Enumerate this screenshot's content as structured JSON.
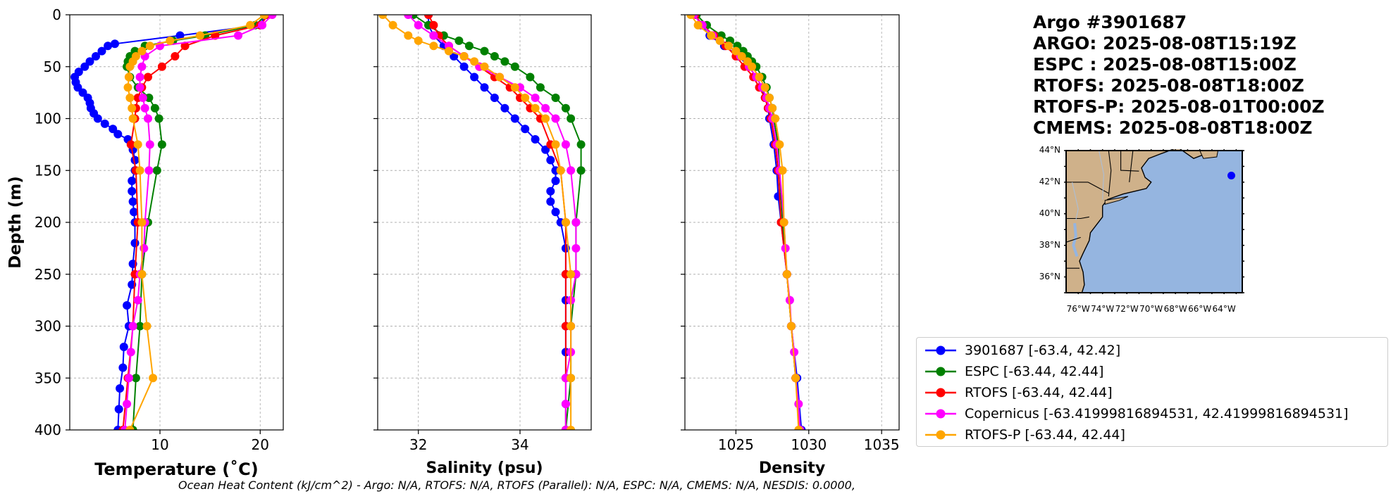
{
  "colors": {
    "argo": "#0000ff",
    "espc": "#008000",
    "rtofs": "#ff0000",
    "copernicus": "#ff00ff",
    "rtofs_p": "#ffa500",
    "land": "#cfb18a",
    "ocean": "#95b5e0",
    "grid": "#b0b0b0"
  },
  "title": {
    "lines": [
      "Argo #3901687",
      "ARGO: 2025-08-08T15:19Z",
      "ESPC : 2025-08-08T15:00Z",
      "RTOFS: 2025-08-08T18:00Z",
      "RTOFS-P: 2025-08-01T00:00Z",
      "CMEMS: 2025-08-08T18:00Z"
    ]
  },
  "legend": {
    "items": [
      {
        "label": "3901687 [-63.4, 42.42]",
        "color": "#0000ff"
      },
      {
        "label": "ESPC [-63.44, 42.44]",
        "color": "#008000"
      },
      {
        "label": "RTOFS [-63.44, 42.44]",
        "color": "#ff0000"
      },
      {
        "label": "Copernicus [-63.41999816894531, 42.41999816894531]",
        "color": "#ff00ff"
      },
      {
        "label": "RTOFS-P [-63.44, 42.44]",
        "color": "#ffa500"
      }
    ]
  },
  "footer": {
    "text": "Ocean Heat Content (kJ/cm^2) - Argo: N/A,  RTOFS: N/A,  RTOFS (Parallel): N/A,  ESPC: N/A,  CMEMS: N/A,  NESDIS: 0.0000,"
  },
  "map": {
    "lat_labels": [
      "44°N",
      "42°N",
      "40°N",
      "38°N",
      "36°N"
    ],
    "lon_labels": [
      "76°W",
      "74°W",
      "72°W",
      "70°W",
      "68°W",
      "66°W",
      "64°W"
    ],
    "marker": {
      "lon": -63.4,
      "lat": 42.42
    },
    "extent": {
      "lon_min": -77,
      "lon_max": -62.5,
      "lat_min": 35,
      "lat_max": 44
    }
  },
  "chart_data": [
    {
      "type": "line",
      "xlabel": "Temperature (˚C)",
      "ylabel": "Depth (m)",
      "xlim": [
        1,
        22.3
      ],
      "ylim": [
        400,
        0
      ],
      "xticks": [
        10,
        20
      ],
      "yticks": [
        0,
        50,
        100,
        150,
        200,
        250,
        300,
        350,
        400
      ],
      "grid": true,
      "series": [
        {
          "name": "3901687",
          "key": "argo",
          "depth": [
            0,
            10,
            20,
            28,
            30,
            35,
            40,
            45,
            50,
            55,
            60,
            65,
            70,
            75,
            80,
            85,
            90,
            95,
            100,
            105,
            110,
            115,
            120,
            125,
            130,
            140,
            150,
            160,
            170,
            180,
            190,
            200,
            220,
            240,
            260,
            280,
            300,
            320,
            340,
            360,
            380,
            400
          ],
          "values": [
            20.5,
            20.0,
            12.0,
            5.5,
            4.8,
            4.2,
            3.6,
            3.0,
            2.5,
            1.9,
            1.5,
            1.6,
            1.8,
            2.3,
            2.8,
            3.0,
            3.1,
            3.4,
            3.8,
            4.5,
            5.3,
            5.8,
            6.8,
            7.1,
            7.3,
            7.5,
            7.5,
            7.2,
            7.2,
            7.3,
            7.4,
            7.5,
            7.5,
            7.3,
            7.2,
            6.7,
            6.9,
            6.4,
            6.3,
            6.0,
            5.9,
            5.8
          ]
        },
        {
          "name": "ESPC",
          "key": "espc",
          "depth": [
            0,
            10,
            20,
            25,
            30,
            35,
            40,
            45,
            50,
            60,
            70,
            80,
            90,
            100,
            125,
            150,
            200,
            250,
            300,
            350,
            400
          ],
          "values": [
            20.6,
            19.5,
            14.5,
            11.3,
            8.5,
            7.5,
            7.0,
            6.8,
            6.7,
            7.0,
            7.8,
            8.9,
            9.5,
            9.9,
            10.2,
            9.7,
            8.8,
            8.2,
            8.0,
            7.6,
            7.3
          ]
        },
        {
          "name": "RTOFS",
          "key": "rtofs",
          "depth": [
            0,
            10,
            20,
            30,
            40,
            50,
            60,
            70,
            80,
            90,
            100,
            125,
            150,
            200,
            250,
            300,
            350,
            400
          ],
          "values": [
            20.8,
            20.0,
            15.5,
            12.5,
            11.5,
            10.2,
            8.8,
            8.2,
            7.8,
            7.6,
            7.5,
            7.1,
            7.6,
            7.8,
            7.5,
            7.3,
            6.8,
            6.3
          ]
        },
        {
          "name": "Copernicus",
          "key": "copernicus",
          "depth": [
            0,
            10,
            20,
            30,
            40,
            50,
            60,
            70,
            80,
            90,
            100,
            125,
            150,
            200,
            225,
            250,
            275,
            300,
            325,
            350,
            375,
            400
          ],
          "values": [
            21.2,
            20.2,
            17.8,
            10.0,
            8.5,
            8.2,
            8.0,
            8.0,
            8.3,
            8.5,
            8.8,
            9.0,
            8.9,
            8.5,
            8.4,
            8.0,
            7.8,
            7.3,
            7.1,
            6.9,
            6.7,
            6.5
          ]
        },
        {
          "name": "RTOFS-P",
          "key": "rtofs_p",
          "depth": [
            0,
            10,
            20,
            25,
            30,
            35,
            40,
            45,
            50,
            60,
            70,
            80,
            90,
            100,
            125,
            150,
            200,
            250,
            300,
            350,
            400
          ],
          "values": [
            20.4,
            19.0,
            14.0,
            11.0,
            9.0,
            8.2,
            7.6,
            7.3,
            7.0,
            6.9,
            6.8,
            7.0,
            7.2,
            7.3,
            7.8,
            8.0,
            8.2,
            8.2,
            8.7,
            9.3,
            7.0
          ]
        }
      ]
    },
    {
      "type": "line",
      "xlabel": "Salinity (psu)",
      "ylabel": "",
      "xlim": [
        31.2,
        35.4
      ],
      "ylim": [
        400,
        0
      ],
      "xticks": [
        32,
        34
      ],
      "yticks": [
        0,
        50,
        100,
        150,
        200,
        250,
        300,
        350,
        400
      ],
      "grid": true,
      "series": [
        {
          "name": "3901687",
          "key": "argo",
          "depth": [
            0,
            10,
            20,
            30,
            40,
            50,
            60,
            70,
            80,
            90,
            100,
            110,
            120,
            130,
            140,
            150,
            160,
            170,
            180,
            190,
            200,
            225,
            250,
            275,
            300,
            325,
            350,
            375,
            400
          ],
          "values": [
            32.2,
            32.2,
            32.3,
            32.5,
            32.7,
            32.9,
            33.1,
            33.3,
            33.5,
            33.7,
            33.9,
            34.1,
            34.3,
            34.5,
            34.6,
            34.7,
            34.7,
            34.6,
            34.6,
            34.7,
            34.8,
            34.9,
            34.9,
            34.9,
            34.9,
            34.9,
            34.9,
            34.9,
            34.9
          ]
        },
        {
          "name": "ESPC",
          "key": "espc",
          "depth": [
            0,
            10,
            20,
            25,
            30,
            35,
            40,
            45,
            50,
            60,
            70,
            80,
            90,
            100,
            125,
            150,
            200,
            250,
            300,
            350,
            400
          ],
          "values": [
            31.9,
            32.2,
            32.5,
            32.8,
            33.0,
            33.3,
            33.5,
            33.7,
            33.9,
            34.2,
            34.4,
            34.7,
            34.9,
            35.0,
            35.2,
            35.2,
            35.1,
            35.1,
            35.0,
            35.0,
            34.9
          ]
        },
        {
          "name": "RTOFS",
          "key": "rtofs",
          "depth": [
            0,
            10,
            20,
            30,
            40,
            50,
            60,
            70,
            80,
            90,
            100,
            125,
            150,
            200,
            250,
            300,
            350,
            400
          ],
          "values": [
            32.2,
            32.3,
            32.4,
            32.6,
            32.9,
            33.2,
            33.5,
            33.8,
            34.0,
            34.2,
            34.4,
            34.6,
            34.8,
            34.9,
            34.9,
            34.9,
            34.9,
            34.9
          ]
        },
        {
          "name": "Copernicus",
          "key": "copernicus",
          "depth": [
            0,
            10,
            20,
            30,
            40,
            50,
            60,
            70,
            80,
            90,
            100,
            125,
            150,
            200,
            225,
            250,
            275,
            300,
            325,
            350,
            375,
            400
          ],
          "values": [
            31.8,
            32.0,
            32.3,
            32.6,
            32.9,
            33.2,
            33.6,
            34.0,
            34.3,
            34.5,
            34.7,
            34.9,
            35.0,
            35.1,
            35.1,
            35.1,
            35.0,
            35.0,
            35.0,
            34.9,
            34.9,
            34.9
          ]
        },
        {
          "name": "RTOFS-P",
          "key": "rtofs_p",
          "depth": [
            0,
            10,
            20,
            25,
            30,
            35,
            40,
            45,
            50,
            60,
            70,
            80,
            90,
            100,
            125,
            150,
            200,
            250,
            300,
            350,
            400
          ],
          "values": [
            31.3,
            31.5,
            31.8,
            32.0,
            32.3,
            32.6,
            32.9,
            33.1,
            33.3,
            33.6,
            33.9,
            34.1,
            34.3,
            34.5,
            34.7,
            34.8,
            34.9,
            35.0,
            35.0,
            35.0,
            35.0
          ]
        }
      ]
    },
    {
      "type": "line",
      "xlabel": "Density",
      "ylabel": "",
      "xlim": [
        1021.5,
        1036.2
      ],
      "ylim": [
        400,
        0
      ],
      "xticks": [
        1025,
        1030,
        1035
      ],
      "yticks": [
        0,
        50,
        100,
        150,
        200,
        250,
        300,
        350,
        400
      ],
      "grid": true,
      "series": [
        {
          "name": "3901687",
          "key": "argo",
          "depth": [
            0,
            10,
            20,
            30,
            40,
            50,
            60,
            70,
            80,
            90,
            100,
            125,
            150,
            175,
            200,
            250,
            300,
            350,
            400
          ],
          "values": [
            1022.2,
            1022.6,
            1023.2,
            1024.2,
            1025.2,
            1025.9,
            1026.4,
            1026.8,
            1027.0,
            1027.2,
            1027.3,
            1027.6,
            1027.8,
            1027.9,
            1028.1,
            1028.5,
            1028.8,
            1029.2,
            1029.5
          ]
        },
        {
          "name": "ESPC",
          "key": "espc",
          "depth": [
            0,
            10,
            20,
            25,
            30,
            35,
            40,
            45,
            50,
            60,
            70,
            80,
            90,
            100,
            125,
            150,
            200,
            250,
            300,
            350,
            400
          ],
          "values": [
            1022.3,
            1023.0,
            1024.0,
            1024.6,
            1025.1,
            1025.5,
            1025.8,
            1026.1,
            1026.4,
            1026.8,
            1027.1,
            1027.3,
            1027.5,
            1027.6,
            1027.9,
            1028.0,
            1028.2,
            1028.5,
            1028.8,
            1029.1,
            1029.4
          ]
        },
        {
          "name": "RTOFS",
          "key": "rtofs",
          "depth": [
            0,
            10,
            20,
            30,
            40,
            50,
            60,
            70,
            80,
            90,
            100,
            125,
            150,
            200,
            250,
            300,
            350,
            400
          ],
          "values": [
            1022.2,
            1022.7,
            1023.5,
            1024.3,
            1025.0,
            1025.6,
            1026.2,
            1026.6,
            1027.0,
            1027.2,
            1027.4,
            1027.7,
            1027.9,
            1028.1,
            1028.5,
            1028.8,
            1029.1,
            1029.4
          ]
        },
        {
          "name": "Copernicus",
          "key": "copernicus",
          "depth": [
            0,
            10,
            20,
            30,
            40,
            50,
            60,
            70,
            80,
            90,
            100,
            125,
            150,
            200,
            225,
            250,
            275,
            300,
            325,
            350,
            375,
            400
          ],
          "values": [
            1022.1,
            1022.7,
            1023.4,
            1024.5,
            1025.3,
            1025.9,
            1026.4,
            1026.8,
            1027.1,
            1027.3,
            1027.5,
            1027.8,
            1028.0,
            1028.3,
            1028.4,
            1028.5,
            1028.7,
            1028.8,
            1029.0,
            1029.1,
            1029.3,
            1029.4
          ]
        },
        {
          "name": "RTOFS-P",
          "key": "rtofs_p",
          "depth": [
            0,
            10,
            20,
            25,
            30,
            35,
            40,
            45,
            50,
            60,
            70,
            80,
            90,
            100,
            125,
            150,
            200,
            250,
            300,
            350,
            400
          ],
          "values": [
            1021.9,
            1022.4,
            1023.3,
            1023.9,
            1024.5,
            1025.0,
            1025.4,
            1025.8,
            1026.1,
            1026.6,
            1027.0,
            1027.3,
            1027.5,
            1027.7,
            1028.0,
            1028.2,
            1028.3,
            1028.5,
            1028.8,
            1029.1,
            1029.3
          ]
        }
      ]
    }
  ]
}
